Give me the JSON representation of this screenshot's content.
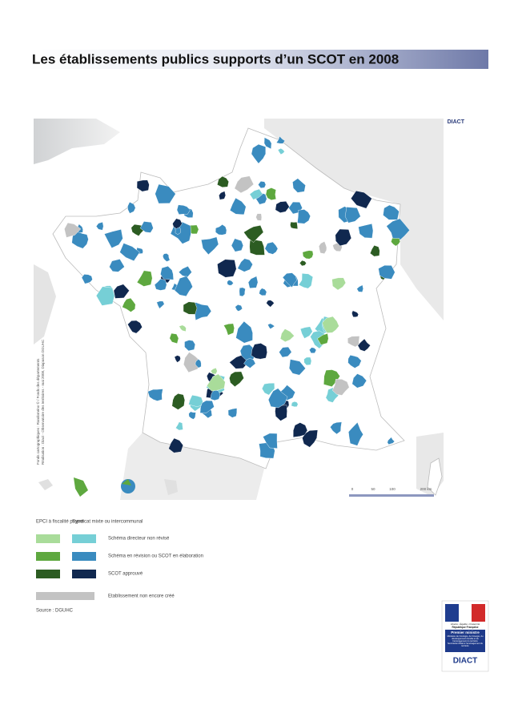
{
  "header": {
    "title": "Les établissements publics supports d’un SCOT en 2008",
    "logo": "DIACT"
  },
  "map": {
    "side_notes": [
      "Fonds cartographiques : Randoméno © / Fonds des départements",
      "Réalisation : Diact - Observatoire des territoires - mai 2008, Diapason DGUHC"
    ],
    "scale_labels": [
      "0",
      "50",
      "100",
      "200 km"
    ]
  },
  "legend": {
    "column_headers": [
      "EPCI à fiscalité propre",
      "Syndicat mixte ou intercommunal"
    ],
    "items": [
      {
        "label": "Schéma directeur non révisé",
        "colors": [
          "#a9dc9a",
          "#76cfd6"
        ]
      },
      {
        "label": "Schéma en révision ou SCOT en élaboration",
        "colors": [
          "#5ea83f",
          "#3a8bbf"
        ]
      },
      {
        "label": "SCOT approuvé",
        "colors": [
          "#2c5c22",
          "#10284f"
        ]
      },
      {
        "label": "Etablissement non encore créé",
        "colors": [
          "#c3c3c3"
        ]
      }
    ]
  },
  "source": "Source : DGUHC",
  "logo_block": {
    "motto": "Liberté • Égalité • Fraternité",
    "republic": "République Française",
    "office": "Premier ministre",
    "ministry": "Ministère de l’écologie, de l’énergie, du développement durable et de l’aménagement du territoire",
    "secretariat": "Secrétariat d’État à l’aménagement du territoire",
    "name": "DIACT"
  }
}
